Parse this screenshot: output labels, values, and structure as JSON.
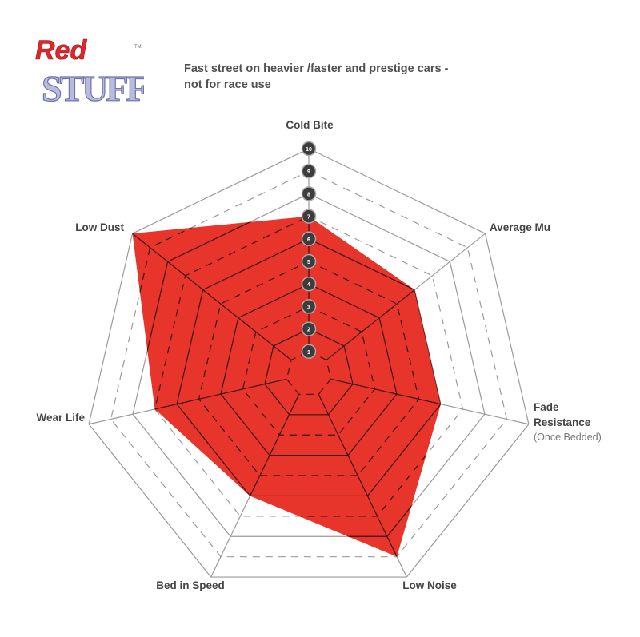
{
  "logo": {
    "line1": "Red",
    "line2": "STUFF",
    "trademark": "TM"
  },
  "title_line1": "Fast street on heavier /faster and prestige cars -",
  "title_line2": "not for race use",
  "chart_data": {
    "type": "radar",
    "axes": [
      {
        "label": "Cold Bite",
        "sublabel": ""
      },
      {
        "label": "Average Mu",
        "sublabel": ""
      },
      {
        "label": "Fade Resistance",
        "sublabel": "(Once Bedded)"
      },
      {
        "label": "Low Noise",
        "sublabel": ""
      },
      {
        "label": "Bed in Speed",
        "sublabel": ""
      },
      {
        "label": "Wear Life",
        "sublabel": ""
      },
      {
        "label": "Low Dust",
        "sublabel": ""
      }
    ],
    "values": [
      7,
      6,
      6,
      9,
      6,
      7,
      10
    ],
    "range": [
      0,
      10
    ],
    "scale_ticks": [
      "1",
      "2",
      "3",
      "4",
      "5",
      "6",
      "7",
      "8",
      "9",
      "10"
    ],
    "fill_color": "#e8352b",
    "grid_color": "#9a9a9a",
    "tick_marker_color": "#3c3c3c"
  }
}
